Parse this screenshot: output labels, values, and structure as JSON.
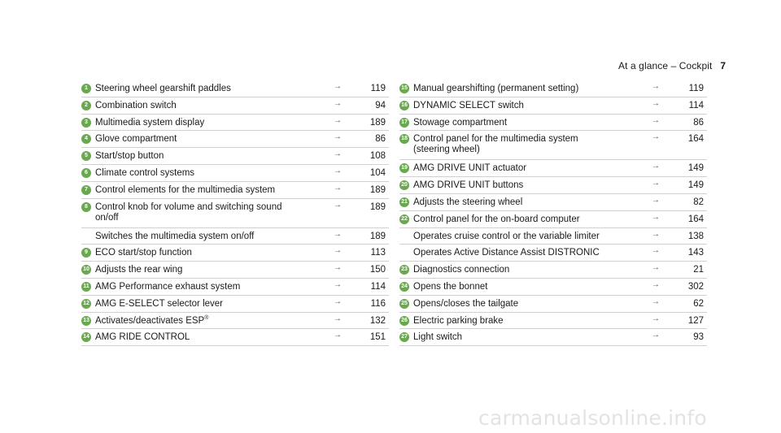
{
  "header": {
    "title": "At a glance – Cockpit",
    "page_number": "7"
  },
  "left_column": [
    {
      "num": "1",
      "label": "Steering wheel gearshift paddles",
      "page": "119"
    },
    {
      "num": "2",
      "label": "Combination switch",
      "page": "94"
    },
    {
      "num": "3",
      "label": "Multimedia system display",
      "page": "189"
    },
    {
      "num": "4",
      "label": "Glove compartment",
      "page": "86"
    },
    {
      "num": "5",
      "label": "Start/stop button",
      "page": "108"
    },
    {
      "num": "6",
      "label": "Climate control systems",
      "page": "104"
    },
    {
      "num": "7",
      "label": "Control elements for the multimedia system",
      "page": "189"
    },
    {
      "num": "8",
      "label": "Control knob for volume and switching sound",
      "label2": "on/off",
      "page": "189"
    },
    {
      "num": "",
      "label": "Switches the multimedia system on/off",
      "page": "189"
    },
    {
      "num": "9",
      "label": "ECO start/stop function",
      "page": "113"
    },
    {
      "num": "10",
      "label": "Adjusts the rear wing",
      "page": "150"
    },
    {
      "num": "11",
      "label": "AMG Performance exhaust system",
      "page": "114"
    },
    {
      "num": "12",
      "label": "AMG E-SELECT selector lever",
      "page": "116"
    },
    {
      "num": "13",
      "label": "Activates/deactivates ESP",
      "sup": "®",
      "page": "132"
    },
    {
      "num": "14",
      "label": "AMG RIDE CONTROL",
      "page": "151"
    }
  ],
  "right_column": [
    {
      "num": "15",
      "label": "Manual gearshifting (permanent setting)",
      "page": "119"
    },
    {
      "num": "16",
      "label": "DYNAMIC SELECT switch",
      "page": "114"
    },
    {
      "num": "17",
      "label": "Stowage compartment",
      "page": "86"
    },
    {
      "num": "18",
      "label": "Control panel for the multimedia system",
      "label2": "(steering wheel)",
      "page": "164"
    },
    {
      "num": "19",
      "label": "AMG DRIVE UNIT actuator",
      "page": "149"
    },
    {
      "num": "20",
      "label": "AMG DRIVE UNIT buttons",
      "page": "149"
    },
    {
      "num": "21",
      "label": "Adjusts the steering wheel",
      "page": "82"
    },
    {
      "num": "22",
      "label": "Control panel for the on-board computer",
      "page": "164"
    },
    {
      "num": "",
      "label": "Operates cruise control or the variable limiter",
      "page": "138"
    },
    {
      "num": "",
      "label": "Operates Active Distance Assist DISTRONIC",
      "page": "143"
    },
    {
      "num": "23",
      "label": "Diagnostics connection",
      "page": "21"
    },
    {
      "num": "24",
      "label": "Opens the bonnet",
      "page": "302"
    },
    {
      "num": "25",
      "label": "Opens/closes the tailgate",
      "page": "62"
    },
    {
      "num": "26",
      "label": "Electric parking brake",
      "page": "127"
    },
    {
      "num": "27",
      "label": "Light switch",
      "page": "93"
    }
  ],
  "arrow_glyph": "→",
  "watermark": "carmanualsonline.info"
}
